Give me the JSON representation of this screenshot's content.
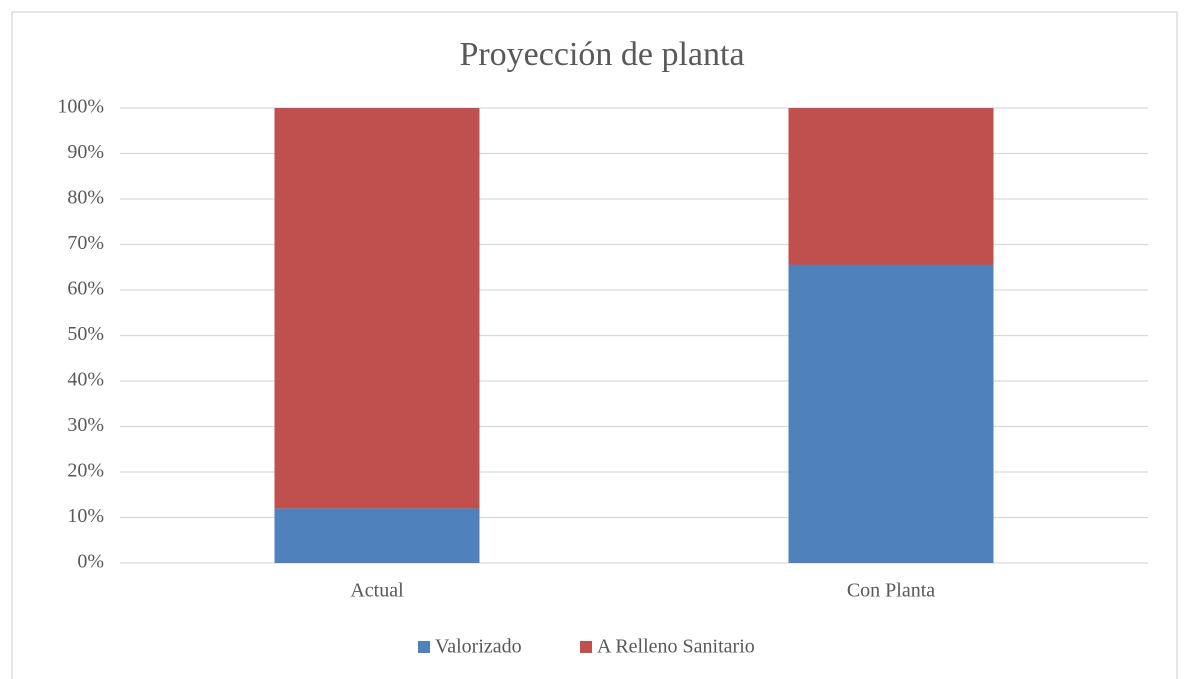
{
  "chart_data": {
    "type": "stacked_bar",
    "title": "Proyección de planta",
    "categories": [
      "Actual",
      "Con Planta"
    ],
    "series": [
      {
        "name": "Valorizado",
        "color": "#4f81bd",
        "values": [
          12,
          65.5
        ]
      },
      {
        "name": "A Relleno Sanitario",
        "color": "#c0504d",
        "values": [
          88,
          34.5
        ]
      }
    ],
    "ylim": [
      0,
      100
    ],
    "yticks": [
      {
        "value": 0,
        "label": "0%"
      },
      {
        "value": 10,
        "label": "10%"
      },
      {
        "value": 20,
        "label": "20%"
      },
      {
        "value": 30,
        "label": "30%"
      },
      {
        "value": 40,
        "label": "40%"
      },
      {
        "value": 50,
        "label": "50%"
      },
      {
        "value": 60,
        "label": "60%"
      },
      {
        "value": 70,
        "label": "70%"
      },
      {
        "value": 80,
        "label": "80%"
      },
      {
        "value": 90,
        "label": "90%"
      },
      {
        "value": 100,
        "label": "100%"
      }
    ],
    "grid": true,
    "legend": "bottom"
  }
}
